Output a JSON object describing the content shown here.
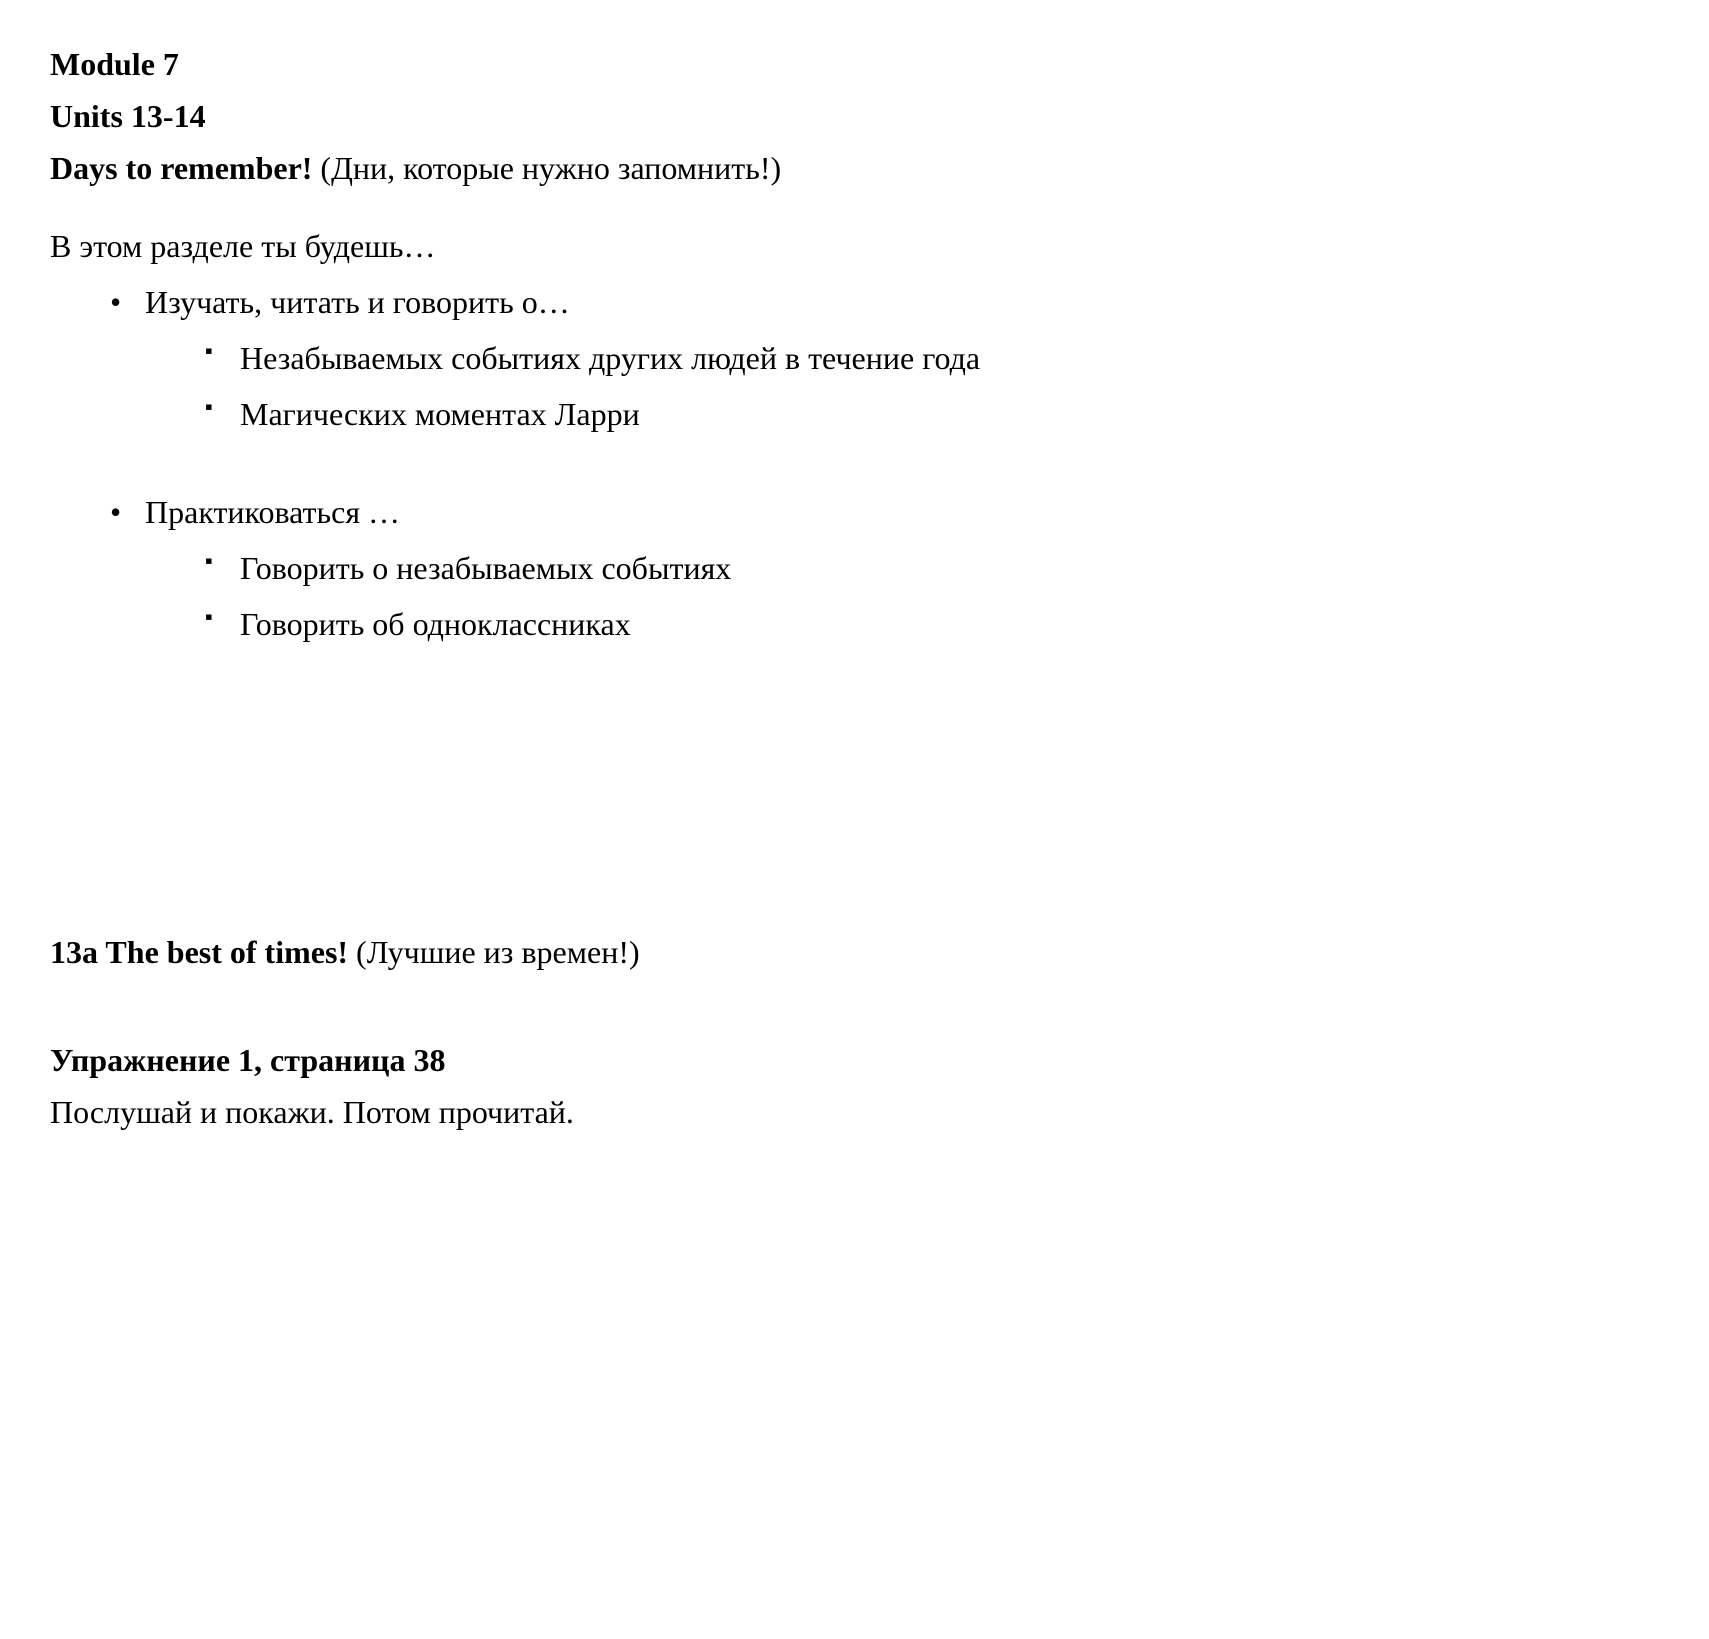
{
  "headings": {
    "module": "Module 7",
    "units": "Units 13-14",
    "title": "Days to remember!",
    "title_translation": " (Дни, которые нужно запомнить!)"
  },
  "intro": "В этом разделе ты будешь…",
  "main_list": {
    "item1": {
      "label": "Изучать, читать и говорить о…",
      "sub1": "Незабываемых событиях других людей в течение года",
      "sub2": "Магических моментах Ларри"
    },
    "item2": {
      "label": "Практиковаться …",
      "sub1": "Говорить о незабываемых событиях",
      "sub2": "Говорить об одноклассниках"
    }
  },
  "section": {
    "number_title": "13a The best of times!",
    "translation": " (Лучшие из времен!)"
  },
  "exercise": {
    "heading": "Упражнение 1, страница 38",
    "instruction": "Послушай и покажи. Потом прочитай."
  }
}
